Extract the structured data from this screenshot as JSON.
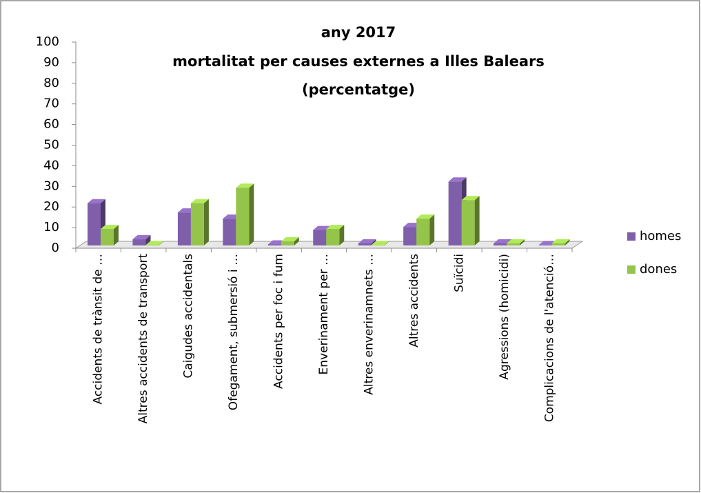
{
  "chart_data": {
    "type": "bar3d",
    "title": [
      "any 2017",
      "mortalitat per causes externes a Illes Balears",
      "(percentatge)"
    ],
    "categories": [
      "Accidents de trànsit de …",
      "Altres accidents de transport",
      "Caigudes accidentals",
      "Ofegament, submersió i …",
      "Accidents per foc i fum",
      "Enverinament per …",
      "Altres enverinamnets …",
      "Altres accidents",
      "Suïcidi",
      "Agressions (homicidi)",
      "Complicacions de l'atenció…"
    ],
    "series": [
      {
        "name": "homes",
        "color": "#7f5fa9",
        "values": [
          20.5,
          3,
          16,
          13,
          0.5,
          7.5,
          1,
          9,
          31,
          1,
          0.2
        ]
      },
      {
        "name": "dones",
        "color": "#94c44a",
        "values": [
          8,
          0.2,
          20.5,
          28,
          2,
          8,
          0.2,
          13,
          22,
          1,
          1
        ]
      }
    ],
    "ylim": [
      0,
      100
    ],
    "yticks": [
      0,
      10,
      20,
      30,
      40,
      50,
      60,
      70,
      80,
      90,
      100
    ],
    "legend": "right"
  }
}
